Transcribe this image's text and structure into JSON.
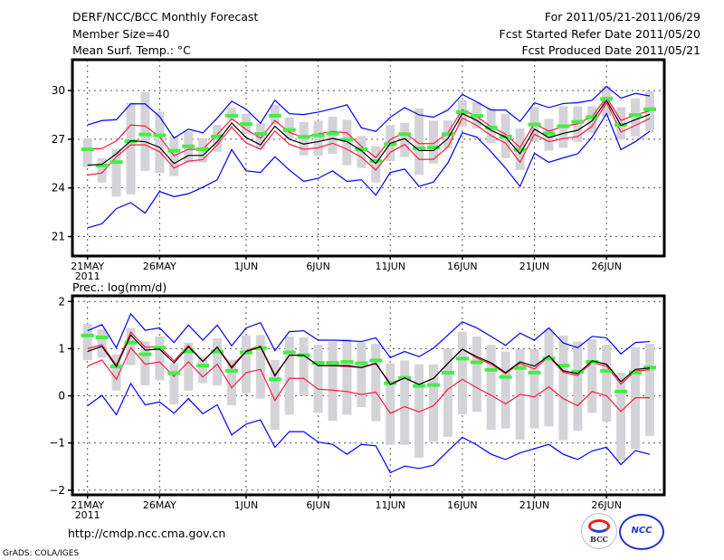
{
  "header": {
    "title": "DERF/NCC/BCC Monthly Forecast",
    "member_size": "Member Size=40",
    "period": "For 2011/05/21-2011/06/29",
    "started": "Fcst Started Refer Date 2011/05/20",
    "produced": "Fcst Produced Date 2011/05/21"
  },
  "footer": {
    "url": "http://cmdp.ncc.cma.gov.cn",
    "grads": "GrADS: COLA/IGES",
    "logo_bcc": "BCC",
    "logo_ncc": "NCC"
  },
  "colors": {
    "max_min": "#0000ff",
    "spread": "#ff1a40",
    "mean": "#000000",
    "green": "#44ee44",
    "box": "#d4d4d8"
  },
  "chart_data": [
    {
      "type": "line",
      "title": "Mean Surf. Temp.: °C",
      "x_start": "2011-05-21",
      "n_days": 40,
      "xticks": [
        {
          "day": 0,
          "label": "21MAY",
          "sub": "2011"
        },
        {
          "day": 5,
          "label": "26MAY"
        },
        {
          "day": 11,
          "label": "1JUN"
        },
        {
          "day": 16,
          "label": "6JUN"
        },
        {
          "day": 21,
          "label": "11JUN"
        },
        {
          "day": 26,
          "label": "16JUN"
        },
        {
          "day": 31,
          "label": "21JUN"
        },
        {
          "day": 36,
          "label": "26JUN"
        }
      ],
      "ylim": [
        19.8,
        31.9
      ],
      "yticks": [
        21,
        24,
        27,
        30
      ],
      "grid": true,
      "box_range": [
        [
          25.28,
          27.06
        ],
        [
          24.33,
          25.83
        ],
        [
          23.46,
          26.38
        ],
        [
          23.6,
          29.25
        ],
        [
          25.05,
          29.9
        ],
        [
          24.92,
          28.7
        ],
        [
          24.73,
          27.2
        ],
        [
          25.56,
          27.48
        ],
        [
          25.56,
          27.06
        ],
        [
          26.23,
          27.88
        ],
        [
          28.2,
          28.94
        ],
        [
          27.3,
          28.57
        ],
        [
          26.38,
          27.99
        ],
        [
          27.93,
          29.12
        ],
        [
          27.02,
          28.34
        ],
        [
          26.0,
          28.06
        ],
        [
          25.98,
          28.15
        ],
        [
          26.1,
          28.39
        ],
        [
          25.4,
          28.2
        ],
        [
          25.23,
          27.2
        ],
        [
          24.33,
          26.56
        ],
        [
          25.65,
          27.88
        ],
        [
          25.9,
          28.0
        ],
        [
          24.8,
          28.9
        ],
        [
          25.5,
          28.15
        ],
        [
          26.43,
          28.15
        ],
        [
          27.8,
          29.43
        ],
        [
          27.65,
          29.3
        ],
        [
          26.75,
          28.94
        ],
        [
          25.83,
          28.57
        ],
        [
          25.1,
          27.66
        ],
        [
          26.85,
          29.0
        ],
        [
          26.29,
          28.26
        ],
        [
          26.47,
          29.03
        ],
        [
          26.84,
          29.03
        ],
        [
          27.39,
          29.03
        ],
        [
          28.39,
          30.27
        ],
        [
          26.98,
          28.98
        ],
        [
          27.17,
          29.52
        ],
        [
          27.48,
          29.98
        ]
      ],
      "series": [
        {
          "name": "max",
          "values": [
            27.88,
            28.15,
            28.2,
            29.18,
            29.18,
            28.39,
            27.07,
            27.62,
            27.39,
            28.3,
            29.34,
            28.85,
            27.99,
            29.4,
            28.57,
            28.52,
            28.67,
            28.88,
            29.12,
            27.7,
            27.48,
            28.35,
            28.95,
            28.5,
            28.36,
            28.8,
            29.76,
            29.3,
            28.8,
            28.8,
            28.09,
            29.25,
            28.95,
            29.2,
            29.25,
            29.4,
            30.25,
            29.53,
            29.82,
            29.67
          ]
        },
        {
          "name": "min",
          "values": [
            21.54,
            21.79,
            22.72,
            23.09,
            22.45,
            23.78,
            23.46,
            23.64,
            24.04,
            24.5,
            26.36,
            25.05,
            24.95,
            25.92,
            25.1,
            24.4,
            24.59,
            25.05,
            24.4,
            24.5,
            23.55,
            24.95,
            25.16,
            24.09,
            24.36,
            25.55,
            27.4,
            27.13,
            26.22,
            25.22,
            24.09,
            26.13,
            25.58,
            25.85,
            26.1,
            27.13,
            28.58,
            26.36,
            26.85,
            27.49
          ]
        },
        {
          "name": "upper",
          "values": [
            26.38,
            26.43,
            26.89,
            27.88,
            27.81,
            27.15,
            25.98,
            26.38,
            26.38,
            27.29,
            28.26,
            27.6,
            27.06,
            28.15,
            27.42,
            27.11,
            27.33,
            27.48,
            27.39,
            26.56,
            25.87,
            26.98,
            27.4,
            26.73,
            26.73,
            27.4,
            28.82,
            28.4,
            27.76,
            27.31,
            26.49,
            27.95,
            27.49,
            27.8,
            27.95,
            28.4,
            29.58,
            28.16,
            28.49,
            28.76
          ]
        },
        {
          "name": "lower",
          "values": [
            24.79,
            24.92,
            25.92,
            26.65,
            26.65,
            26.23,
            25.23,
            25.65,
            25.74,
            26.65,
            27.75,
            26.78,
            26.38,
            27.51,
            26.69,
            26.38,
            26.47,
            26.75,
            26.38,
            25.89,
            25.1,
            26.2,
            26.67,
            25.76,
            25.76,
            26.53,
            28.31,
            27.85,
            27.22,
            26.76,
            25.58,
            27.31,
            26.85,
            27.04,
            27.16,
            27.8,
            29.25,
            27.44,
            27.85,
            28.27
          ]
        },
        {
          "name": "mean",
          "values": [
            25.4,
            25.45,
            26.1,
            26.9,
            26.85,
            26.5,
            25.5,
            26.0,
            26.0,
            26.85,
            28.0,
            27.1,
            26.65,
            27.8,
            27.0,
            26.7,
            26.85,
            27.05,
            26.85,
            26.3,
            25.5,
            26.75,
            27.04,
            26.3,
            26.3,
            27.04,
            28.58,
            28.16,
            27.55,
            27.13,
            26.1,
            27.62,
            27.1,
            27.36,
            27.55,
            28.13,
            29.4,
            27.85,
            28.2,
            28.53
          ]
        },
        {
          "name": "green",
          "values": [
            26.38,
            25.37,
            25.59,
            26.87,
            27.29,
            27.24,
            26.29,
            26.56,
            26.38,
            27.17,
            28.45,
            27.93,
            27.33,
            28.45,
            27.57,
            27.15,
            27.24,
            27.35,
            26.97,
            26.38,
            25.65,
            26.69,
            27.31,
            26.44,
            26.49,
            27.31,
            28.67,
            28.44,
            27.71,
            27.16,
            26.35,
            27.91,
            27.36,
            27.8,
            28.07,
            28.36,
            29.49,
            27.89,
            28.49,
            28.85
          ]
        }
      ]
    },
    {
      "type": "line",
      "title": "Prec.: log(mm/d)",
      "x_start": "2011-05-21",
      "n_days": 40,
      "xticks": [
        {
          "day": 0,
          "label": "21MAY",
          "sub": "2011"
        },
        {
          "day": 5,
          "label": "26MAY"
        },
        {
          "day": 11,
          "label": "1JUN"
        },
        {
          "day": 16,
          "label": "6JUN"
        },
        {
          "day": 21,
          "label": "11JUN"
        },
        {
          "day": 26,
          "label": "16JUN"
        },
        {
          "day": 31,
          "label": "21JUN"
        },
        {
          "day": 36,
          "label": "26JUN"
        }
      ],
      "ylim": [
        -2.1,
        2.12
      ],
      "yticks": [
        -2,
        -1,
        0,
        1,
        2
      ],
      "grid": true,
      "box_range": [
        [
          0.76,
          1.52
        ],
        [
          0.81,
          1.41
        ],
        [
          0.11,
          0.88
        ],
        [
          0.65,
          1.44
        ],
        [
          0.22,
          1.15
        ],
        [
          0.33,
          1.26
        ],
        [
          -0.18,
          0.69
        ],
        [
          0.11,
          1.13
        ],
        [
          0.27,
          0.83
        ],
        [
          0.22,
          1.22
        ],
        [
          -0.2,
          0.77
        ],
        [
          0.06,
          1.28
        ],
        [
          -0.06,
          1.29
        ],
        [
          -0.72,
          0.76
        ],
        [
          -0.4,
          1.26
        ],
        [
          0.0,
          1.24
        ],
        [
          -0.36,
          1.08
        ],
        [
          -0.53,
          1.15
        ],
        [
          -0.4,
          1.2
        ],
        [
          -0.24,
          1.13
        ],
        [
          -0.54,
          1.1
        ],
        [
          -1.04,
          0.69
        ],
        [
          -1.04,
          0.75
        ],
        [
          -1.31,
          0.67
        ],
        [
          -0.97,
          0.67
        ],
        [
          -0.87,
          1.0
        ],
        [
          -0.39,
          1.36
        ],
        [
          -0.34,
          1.26
        ],
        [
          -0.72,
          1.08
        ],
        [
          -0.69,
          0.94
        ],
        [
          -0.93,
          0.99
        ],
        [
          -0.69,
          0.99
        ],
        [
          -0.65,
          1.42
        ],
        [
          -0.94,
          1.28
        ],
        [
          -0.74,
          1.15
        ],
        [
          -0.36,
          1.2
        ],
        [
          -0.55,
          1.08
        ],
        [
          -1.37,
          0.49
        ],
        [
          -1.13,
          1.03
        ],
        [
          -0.85,
          1.1
        ]
      ],
      "series": [
        {
          "name": "max",
          "values": [
            1.38,
            1.51,
            1.02,
            1.74,
            1.39,
            1.44,
            1.13,
            1.5,
            1.18,
            1.5,
            1.06,
            1.44,
            1.55,
            0.96,
            1.36,
            1.38,
            1.18,
            1.18,
            1.17,
            1.15,
            1.23,
            0.81,
            0.94,
            0.83,
            1.01,
            1.29,
            1.57,
            1.44,
            1.26,
            1.07,
            1.33,
            1.18,
            1.44,
            1.12,
            1.02,
            1.26,
            1.23,
            0.89,
            1.13,
            1.15
          ]
        },
        {
          "name": "min",
          "values": [
            -0.21,
            0.01,
            -0.4,
            0.26,
            -0.19,
            -0.13,
            -0.37,
            -0.06,
            -0.38,
            -0.19,
            -0.83,
            -0.6,
            -0.51,
            -1.09,
            -0.76,
            -0.76,
            -0.98,
            -1.03,
            -1.24,
            -1.03,
            -1.06,
            -1.63,
            -1.49,
            -1.54,
            -1.47,
            -1.17,
            -0.88,
            -1.04,
            -1.24,
            -1.35,
            -1.21,
            -1.12,
            -1.03,
            -1.24,
            -1.35,
            -1.17,
            -1.09,
            -1.46,
            -1.16,
            -1.24
          ]
        },
        {
          "name": "upper",
          "values": [
            1.0,
            1.08,
            0.65,
            1.35,
            1.03,
            1.04,
            0.74,
            1.07,
            0.73,
            1.04,
            0.62,
            0.96,
            1.06,
            0.44,
            0.86,
            0.86,
            0.64,
            0.64,
            0.62,
            0.6,
            0.68,
            0.27,
            0.37,
            0.24,
            0.37,
            0.69,
            0.99,
            0.8,
            0.67,
            0.47,
            0.69,
            0.57,
            0.83,
            0.5,
            0.43,
            0.71,
            0.63,
            0.25,
            0.53,
            0.55
          ]
        },
        {
          "name": "lower",
          "values": [
            0.63,
            0.76,
            0.35,
            1.02,
            0.67,
            0.72,
            0.41,
            0.72,
            0.4,
            0.67,
            0.17,
            0.49,
            0.56,
            -0.1,
            0.37,
            0.37,
            0.14,
            0.12,
            0.09,
            0.03,
            0.08,
            -0.37,
            -0.23,
            -0.34,
            -0.21,
            0.14,
            0.35,
            0.17,
            0.01,
            -0.17,
            0.03,
            -0.02,
            0.19,
            -0.06,
            -0.21,
            0.09,
            0.0,
            -0.33,
            -0.04,
            -0.04
          ]
        },
        {
          "name": "mean",
          "values": [
            0.94,
            1.05,
            0.62,
            1.29,
            0.97,
            0.99,
            0.7,
            1.04,
            0.73,
            1.03,
            0.59,
            0.94,
            1.04,
            0.42,
            0.86,
            0.86,
            0.64,
            0.64,
            0.64,
            0.6,
            0.69,
            0.24,
            0.38,
            0.24,
            0.37,
            0.69,
            0.99,
            0.83,
            0.7,
            0.49,
            0.72,
            0.63,
            0.85,
            0.53,
            0.47,
            0.74,
            0.67,
            0.3,
            0.56,
            0.59
          ]
        },
        {
          "name": "green",
          "values": [
            1.28,
            1.24,
            0.62,
            1.13,
            0.88,
            1.02,
            0.48,
            0.94,
            0.64,
            0.94,
            0.53,
            0.92,
            1.01,
            0.35,
            0.92,
            0.86,
            0.7,
            0.7,
            0.72,
            0.69,
            0.75,
            0.27,
            0.38,
            0.21,
            0.23,
            0.49,
            0.79,
            0.71,
            0.55,
            0.4,
            0.59,
            0.49,
            0.79,
            0.64,
            0.51,
            0.72,
            0.53,
            0.09,
            0.49,
            0.6
          ]
        }
      ]
    }
  ]
}
